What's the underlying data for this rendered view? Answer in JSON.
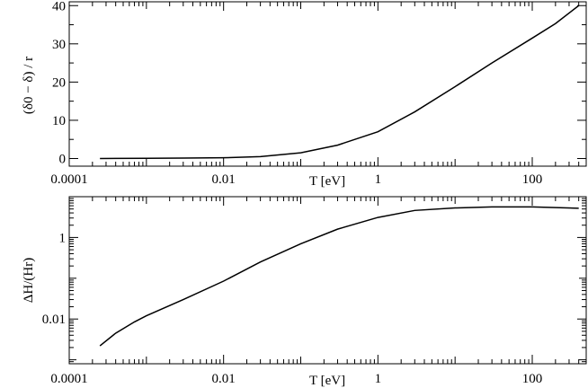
{
  "chart_data": [
    {
      "type": "line",
      "scale": {
        "x": "log",
        "y": "linear"
      },
      "xlabel": "T [eV]",
      "ylabel": "(δ0 − δ) / r",
      "xlim": [
        0.0001,
        500
      ],
      "ylim": [
        -2,
        41
      ],
      "x_ticks": [
        {
          "value": 0.0001,
          "label": "0.0001"
        },
        {
          "value": 0.01,
          "label": "0.01"
        },
        {
          "value": 1,
          "label": "1"
        },
        {
          "value": 100,
          "label": "100"
        }
      ],
      "y_ticks": [
        {
          "value": 0,
          "label": "0"
        },
        {
          "value": 10,
          "label": "10"
        },
        {
          "value": 20,
          "label": "20"
        },
        {
          "value": 30,
          "label": "30"
        },
        {
          "value": 40,
          "label": "40"
        }
      ],
      "series": [
        {
          "x": [
            0.00025,
            0.001,
            0.003,
            0.01,
            0.03,
            0.1,
            0.3,
            1,
            3,
            10,
            30,
            100,
            200,
            400
          ],
          "y": [
            0,
            0.05,
            0.1,
            0.2,
            0.5,
            1.5,
            3.5,
            7,
            12.2,
            18.8,
            25,
            31.5,
            35.3,
            40
          ]
        }
      ]
    },
    {
      "type": "line",
      "scale": {
        "x": "log",
        "y": "log"
      },
      "xlabel": "T [eV]",
      "ylabel": "ΔH/(Hr)",
      "xlim": [
        0.0001,
        500
      ],
      "ylim": [
        0.0008,
        10
      ],
      "x_ticks": [
        {
          "value": 0.0001,
          "label": "0.0001"
        },
        {
          "value": 0.01,
          "label": "0.01"
        },
        {
          "value": 1,
          "label": "1"
        },
        {
          "value": 100,
          "label": "100"
        }
      ],
      "y_ticks": [
        {
          "value": 0.01,
          "label": "0.01"
        },
        {
          "value": 1,
          "label": "1"
        }
      ],
      "series": [
        {
          "x": [
            0.00025,
            0.0004,
            0.0007,
            0.001,
            0.003,
            0.01,
            0.03,
            0.1,
            0.3,
            1,
            3,
            10,
            30,
            100,
            400
          ],
          "y": [
            0.0022,
            0.0045,
            0.0085,
            0.012,
            0.03,
            0.085,
            0.25,
            0.7,
            1.6,
            3.1,
            4.6,
            5.3,
            5.6,
            5.6,
            5.2
          ]
        }
      ]
    }
  ]
}
